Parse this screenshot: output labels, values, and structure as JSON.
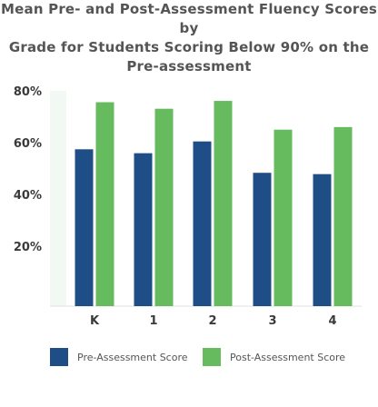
{
  "chart_data": {
    "type": "bar",
    "title_lines": [
      "Mean Pre- and Post-Assessment Fluency Scores by",
      "Grade for Students Scoring Below 90% on the",
      "Pre-assessment"
    ],
    "categories": [
      "K",
      "1",
      "2",
      "3",
      "4"
    ],
    "series": [
      {
        "name": "Pre-Assessment Score",
        "values": [
          60,
          58.5,
          63,
          51,
          50.5
        ],
        "color": "#1f4e87"
      },
      {
        "name": "Post-Assessment Score",
        "values": [
          78,
          75.5,
          78.5,
          67.5,
          68.5
        ],
        "color": "#66bb5f"
      }
    ],
    "yticks": [
      "20%",
      "40%",
      "60%",
      "80%"
    ],
    "ylim": [
      0,
      82
    ],
    "legend_position": "bottom",
    "plot_background": "#f2f8f4"
  }
}
